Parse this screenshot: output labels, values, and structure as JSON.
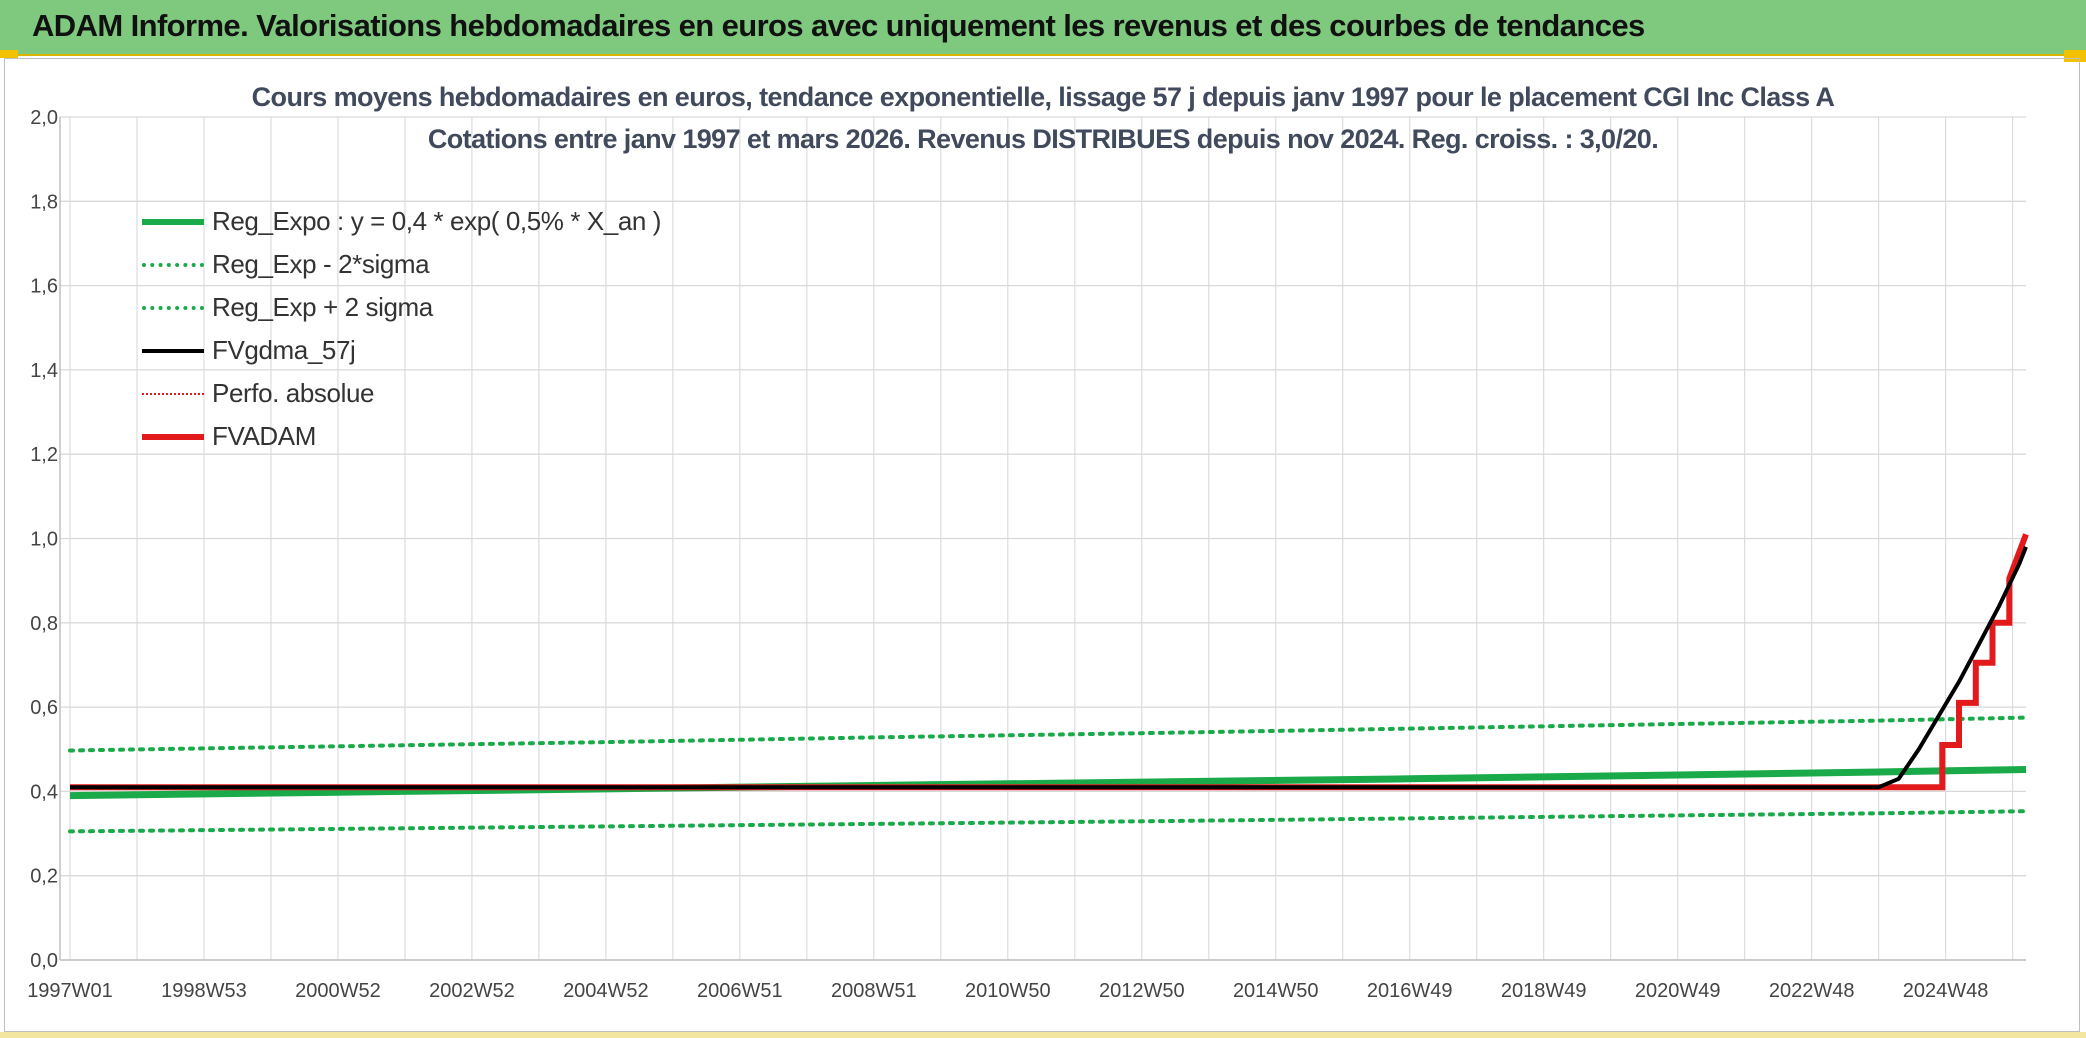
{
  "banner": {
    "title": "ADAM Informe. Valorisations hebdomadaires en euros avec uniquement les revenus et des courbes de tendances"
  },
  "chart_data": {
    "type": "line",
    "title_line1": "Cours moyens hebdomadaires en euros, tendance exponentielle, lissage 57 j depuis janv 1997 pour le placement CGI Inc Class A",
    "title_line2": "Cotations entre janv 1997 et mars 2026. Revenus DISTRIBUES depuis nov 2024. Reg. croiss. : 3,0/20.",
    "ylim": [
      0,
      2
    ],
    "y_ticks": [
      "0,0",
      "0,2",
      "0,4",
      "0,6",
      "0,8",
      "1,0",
      "1,2",
      "1,4",
      "1,6",
      "1,8",
      "2,0"
    ],
    "x_ticks": [
      "1997W01",
      "1998W53",
      "2000W52",
      "2002W52",
      "2004W52",
      "2006W51",
      "2008W51",
      "2010W50",
      "2012W50",
      "2014W50",
      "2016W49",
      "2018W49",
      "2020W49",
      "2022W48",
      "2024W48"
    ],
    "x_range_years": [
      1997.0,
      2026.2
    ],
    "grid": true,
    "legend_position": "top-left",
    "colors": {
      "green": "#1aaa4a",
      "black": "#000000",
      "red": "#e31a1c",
      "grid": "#d9d9d9"
    },
    "series": [
      {
        "name": "Reg_Expo : y = 0,4 * exp( 0,5% *  X_an )",
        "style": "solid-thick",
        "color": "#1aaa4a",
        "x": [
          1997.0,
          2001.0,
          2005.0,
          2009.0,
          2013.0,
          2017.0,
          2021.0,
          2024.0,
          2026.2
        ],
        "y": [
          0.39,
          0.398,
          0.406,
          0.414,
          0.422,
          0.43,
          0.439,
          0.446,
          0.452
        ]
      },
      {
        "name": "Reg_Exp - 2*sigma",
        "style": "dotted",
        "color": "#1aaa4a",
        "x": [
          1997.0,
          2001.0,
          2005.0,
          2009.0,
          2013.0,
          2017.0,
          2021.0,
          2024.0,
          2026.2
        ],
        "y": [
          0.305,
          0.311,
          0.317,
          0.323,
          0.329,
          0.336,
          0.343,
          0.348,
          0.353
        ]
      },
      {
        "name": "Reg_Exp + 2 sigma",
        "style": "dotted",
        "color": "#1aaa4a",
        "x": [
          1997.0,
          2001.0,
          2005.0,
          2009.0,
          2013.0,
          2017.0,
          2021.0,
          2024.0,
          2026.2
        ],
        "y": [
          0.497,
          0.507,
          0.517,
          0.528,
          0.538,
          0.549,
          0.56,
          0.568,
          0.575
        ]
      },
      {
        "name": "FVgdma_57j",
        "style": "solid",
        "color": "#000000",
        "x": [
          1997.0,
          2024.0,
          2024.3,
          2024.6,
          2024.9,
          2025.2,
          2025.5,
          2025.8,
          2026.1,
          2026.2
        ],
        "y": [
          0.41,
          0.41,
          0.43,
          0.5,
          0.58,
          0.66,
          0.75,
          0.84,
          0.94,
          0.98
        ]
      },
      {
        "name": "Perfo. absolue",
        "style": "dotted",
        "color": "#e31a1c",
        "x": [],
        "y": []
      },
      {
        "name": "FVADAM",
        "style": "step-thick",
        "color": "#e31a1c",
        "x": [
          1997.0,
          2024.95,
          2024.95,
          2025.2,
          2025.2,
          2025.45,
          2025.45,
          2025.7,
          2025.7,
          2025.95,
          2025.95,
          2026.2
        ],
        "y": [
          0.41,
          0.41,
          0.51,
          0.51,
          0.61,
          0.61,
          0.705,
          0.705,
          0.8,
          0.8,
          0.905,
          1.01
        ]
      }
    ]
  }
}
